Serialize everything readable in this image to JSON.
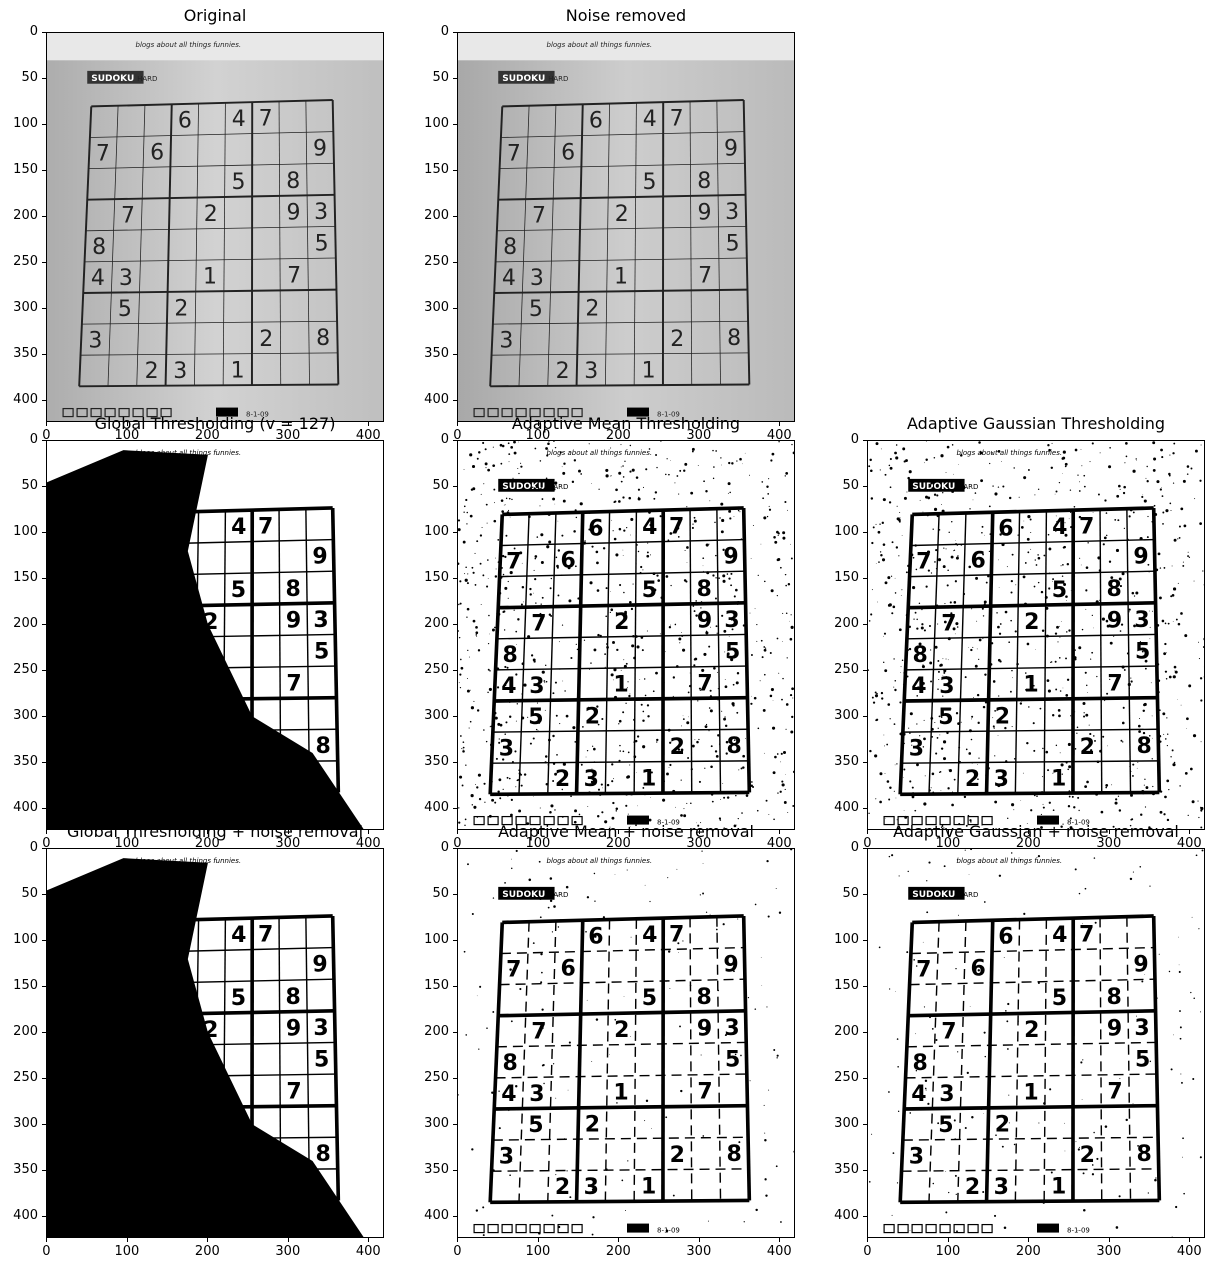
{
  "figure": {
    "panels": [
      {
        "id": "original",
        "title": "Original",
        "style": "gray",
        "row": 0,
        "col": 0
      },
      {
        "id": "noise-removed",
        "title": "Noise removed",
        "style": "gray-blur",
        "row": 0,
        "col": 1
      },
      {
        "id": "global",
        "title": "Global Thresholding (v = 127)",
        "style": "global",
        "row": 1,
        "col": 0
      },
      {
        "id": "adaptive-mean",
        "title": "Adaptive Mean Thresholding",
        "style": "adaptive",
        "row": 1,
        "col": 1
      },
      {
        "id": "adaptive-gaussian",
        "title": "Adaptive Gaussian Thresholding",
        "style": "adaptive",
        "row": 1,
        "col": 2
      },
      {
        "id": "global-nr",
        "title": "Global Thresholding + noise removal",
        "style": "global-nr",
        "row": 2,
        "col": 0
      },
      {
        "id": "adaptive-mean-nr",
        "title": "Adaptive Mean + noise removal",
        "style": "adaptive-nr",
        "row": 2,
        "col": 1
      },
      {
        "id": "adaptive-gaussian-nr",
        "title": "Adaptive Gaussian + noise removal",
        "style": "adaptive-nr",
        "row": 2,
        "col": 2
      }
    ],
    "y_ticks": [
      "0",
      "50",
      "100",
      "150",
      "200",
      "250",
      "300",
      "350",
      "400"
    ],
    "x_ticks": [
      "0",
      "100",
      "200",
      "300",
      "400"
    ]
  },
  "puzzle": {
    "header_label": "SUDOKU",
    "difficulty_label": "HARD",
    "strip_text_top": "blogs about all things funnies.",
    "footer_date": "8-1-09",
    "grid": [
      [
        "",
        "",
        "",
        "6",
        "",
        "4",
        "7",
        "",
        ""
      ],
      [
        "7",
        "",
        "6",
        "",
        "",
        "",
        "",
        "",
        "9"
      ],
      [
        "",
        "",
        "",
        "",
        "",
        "5",
        "",
        "8",
        ""
      ],
      [
        "",
        "7",
        "",
        "",
        "2",
        "",
        "",
        "9",
        "3"
      ],
      [
        "8",
        "",
        "",
        "",
        "",
        "",
        "",
        "",
        "5"
      ],
      [
        "4",
        "3",
        "",
        "",
        "1",
        "",
        "",
        "7",
        ""
      ],
      [
        "",
        "5",
        "",
        "2",
        "",
        "",
        "",
        "",
        ""
      ],
      [
        "3",
        "",
        "",
        "",
        "",
        "",
        "2",
        "",
        "8"
      ],
      [
        "",
        "",
        "2",
        "3",
        "",
        "1",
        "",
        "",
        ""
      ]
    ]
  }
}
